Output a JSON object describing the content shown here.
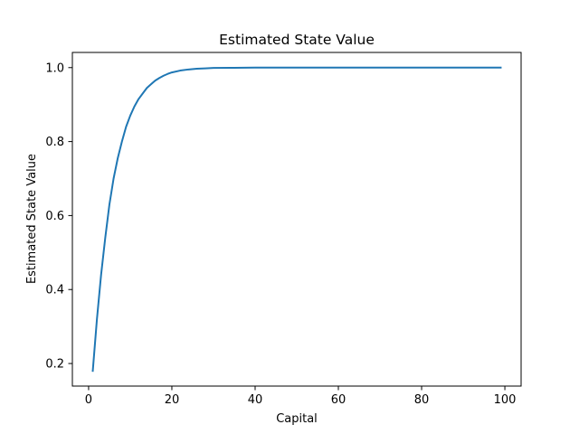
{
  "chart_data": {
    "type": "line",
    "title": "Estimated State Value",
    "xlabel": "Capital",
    "ylabel": "Estimated State Value",
    "xlim": [
      -3.9,
      103.9
    ],
    "ylim": [
      0.139,
      1.041
    ],
    "xticks": [
      0,
      20,
      40,
      60,
      80,
      100
    ],
    "yticks": [
      0.2,
      0.4,
      0.6,
      0.8,
      1.0
    ],
    "xtick_labels": [
      "0",
      "20",
      "40",
      "60",
      "80",
      "100"
    ],
    "ytick_labels": [
      "0.2",
      "0.4",
      "0.6",
      "0.8",
      "1.0"
    ],
    "grid": false,
    "legend": "none",
    "colors": {
      "line": "#1f77b4"
    },
    "series": [
      {
        "x": [
          1,
          2,
          3,
          4,
          5,
          6,
          7,
          8,
          9,
          10,
          11,
          12,
          13,
          14,
          15,
          16,
          17,
          18,
          19,
          20,
          22,
          24,
          26,
          28,
          30,
          35,
          40,
          45,
          50,
          60,
          70,
          80,
          90,
          99
        ],
        "values": [
          0.18,
          0.32,
          0.44,
          0.54,
          0.63,
          0.7,
          0.755,
          0.8,
          0.84,
          0.87,
          0.895,
          0.915,
          0.93,
          0.945,
          0.955,
          0.965,
          0.972,
          0.978,
          0.983,
          0.987,
          0.992,
          0.995,
          0.997,
          0.998,
          0.999,
          0.9995,
          1.0,
          1.0,
          1.0,
          1.0,
          1.0,
          1.0,
          1.0,
          1.0
        ]
      }
    ]
  }
}
